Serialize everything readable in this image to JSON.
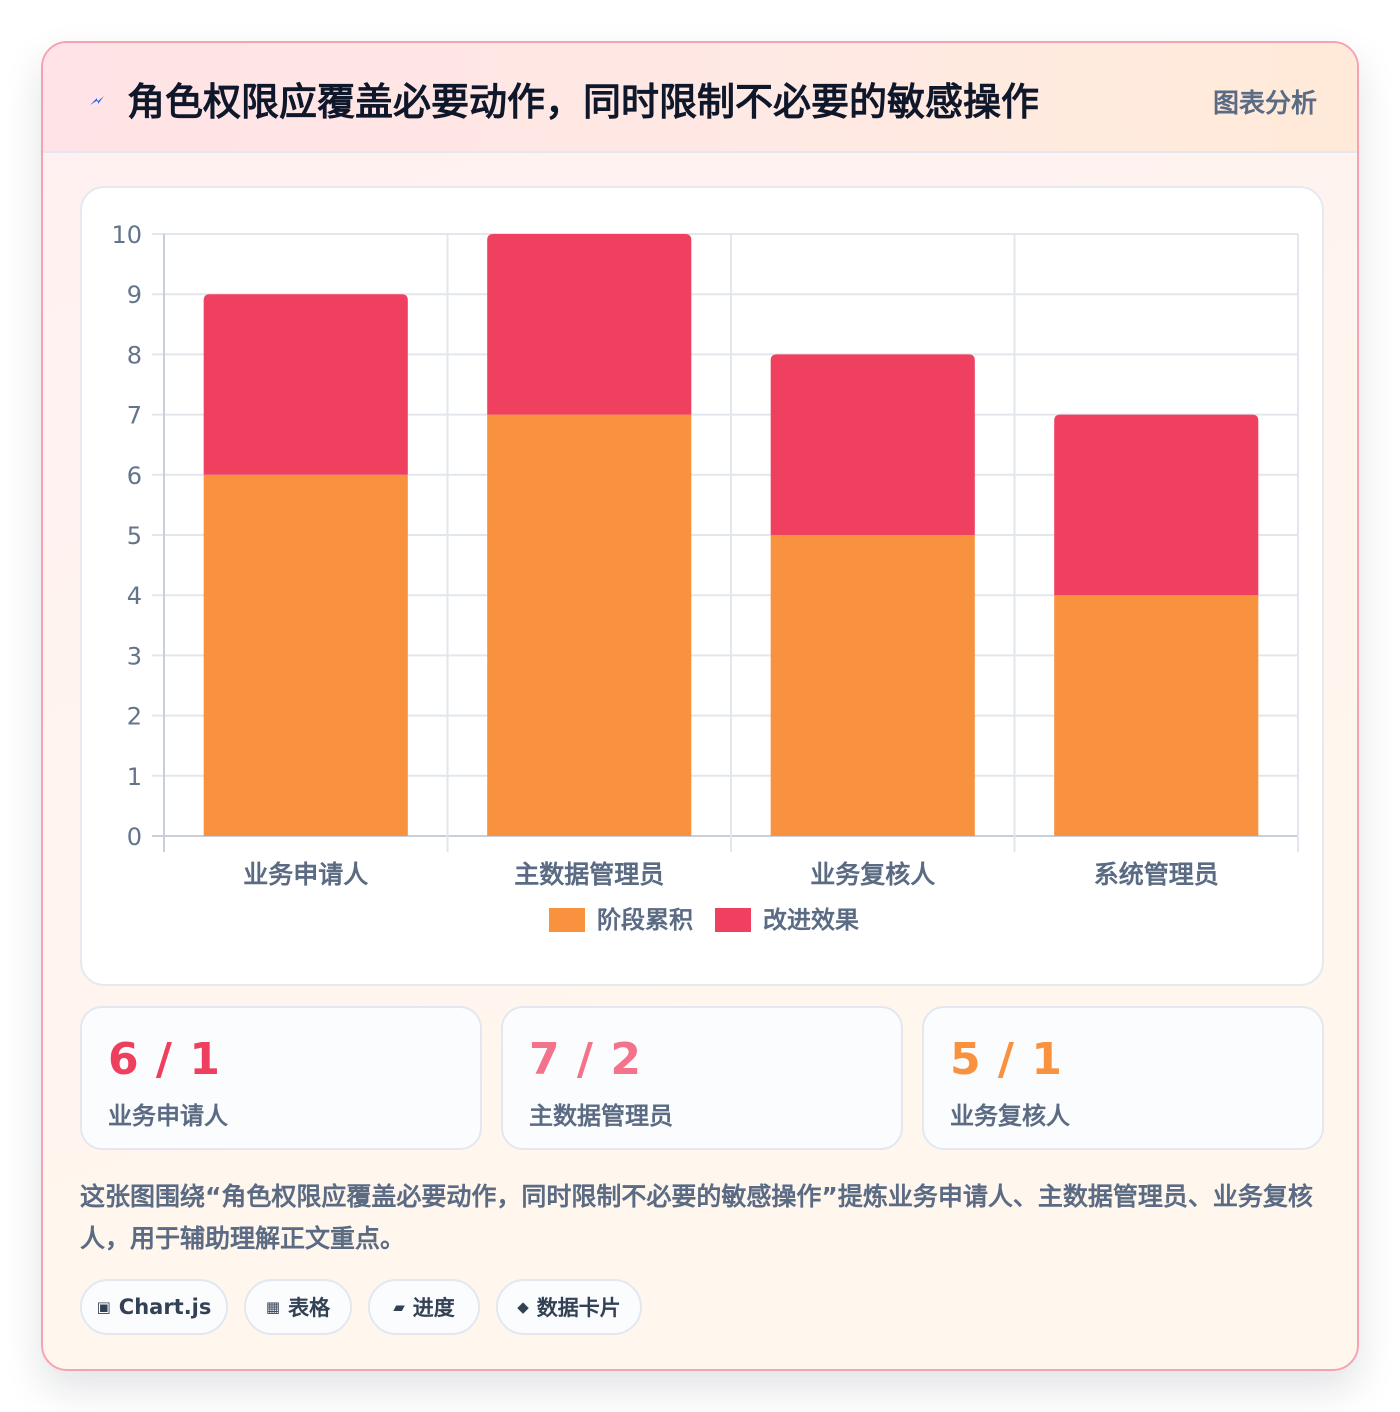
{
  "header": {
    "title": "角色权限应覆盖必要动作，同时限制不必要的敏感操作",
    "action_label": "图表分析"
  },
  "chart_data": {
    "type": "bar",
    "stacked": true,
    "categories": [
      "业务申请人",
      "主数据管理员",
      "业务复核人",
      "系统管理员"
    ],
    "series": [
      {
        "name": "阶段累积",
        "values": [
          6,
          7,
          5,
          4
        ],
        "color": "#f8923e"
      },
      {
        "name": "改进效果",
        "values": [
          3,
          3,
          3,
          3
        ],
        "color": "#f04060"
      }
    ],
    "ylim": [
      0,
      10
    ],
    "yticks": [
      "0",
      "1",
      "2",
      "3",
      "4",
      "5",
      "6",
      "7",
      "8",
      "9",
      "10"
    ],
    "grid": true,
    "legend_position": "bottom"
  },
  "stats": [
    {
      "value": "6 / 1",
      "label": "业务申请人",
      "color": "#ef3f5f"
    },
    {
      "value": "7 / 2",
      "label": "主数据管理员",
      "color": "#f3738a"
    },
    {
      "value": "5 / 1",
      "label": "业务复核人",
      "color": "#f8923e"
    }
  ],
  "summary": "这张图围绕“角色权限应覆盖必要动作，同时限制不必要的敏感操作”提炼业务申请人、主数据管理员、业务复核人，用于辅助理解正文重点。",
  "tags": [
    {
      "icon": "▣",
      "icon_name": "chart-icon",
      "label": "Chart.js"
    },
    {
      "icon": "▦",
      "icon_name": "table-icon",
      "label": "表格"
    },
    {
      "icon": "▰",
      "icon_name": "progress-icon",
      "label": "进度"
    },
    {
      "icon": "◆",
      "icon_name": "data-card-icon",
      "label": "数据卡片"
    }
  ]
}
